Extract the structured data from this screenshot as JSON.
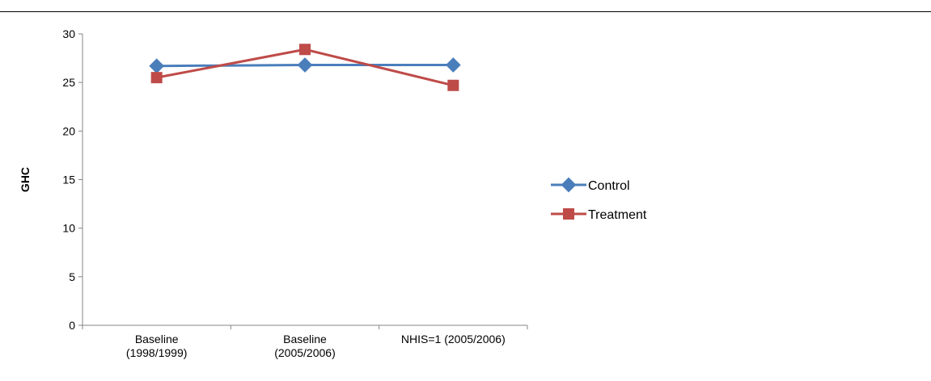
{
  "chart_data": {
    "type": "line",
    "title": "",
    "xlabel": "",
    "ylabel": "GHC",
    "ylim": [
      0,
      30
    ],
    "yticks": [
      0,
      5,
      10,
      15,
      20,
      25,
      30
    ],
    "grid": false,
    "legend_position": "right",
    "categories": [
      [
        "Baseline",
        "(1998/1999)"
      ],
      [
        "Baseline",
        "(2005/2006)"
      ],
      [
        "NHIS=1 (2005/2006)"
      ]
    ],
    "series": [
      {
        "name": "Control",
        "values": [
          26.7,
          26.8,
          26.8
        ],
        "color": "#4A7EBB",
        "marker": "diamond"
      },
      {
        "name": "Treatment",
        "values": [
          25.5,
          28.4,
          24.7
        ],
        "color": "#BE4B48",
        "marker": "square"
      }
    ]
  }
}
